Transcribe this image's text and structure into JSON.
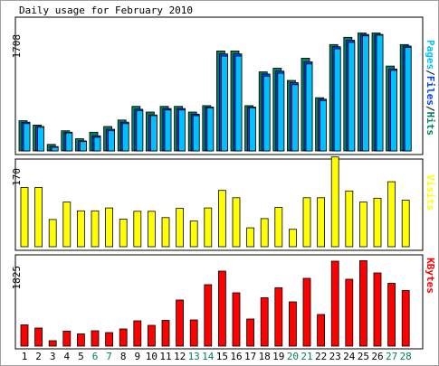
{
  "chart_data": [
    {
      "type": "bar",
      "title": "Daily usage for February 2010",
      "ytop_label": "1708",
      "ylim": [
        0,
        1760
      ],
      "legend": [
        "Pages",
        "Files",
        "Hits"
      ],
      "legend_sep": "/",
      "categories": [
        "1",
        "2",
        "3",
        "4",
        "5",
        "6",
        "7",
        "8",
        "9",
        "10",
        "11",
        "12",
        "13",
        "14",
        "15",
        "16",
        "17",
        "18",
        "19",
        "20",
        "21",
        "22",
        "23",
        "24",
        "25",
        "26",
        "27",
        "28"
      ],
      "weekend_days": [
        "6",
        "7",
        "13",
        "14",
        "20",
        "21",
        "27",
        "28"
      ],
      "series": [
        {
          "name": "Hits",
          "values": [
            420,
            360,
            90,
            280,
            170,
            260,
            340,
            430,
            620,
            540,
            620,
            620,
            540,
            630,
            1390,
            1390,
            630,
            1100,
            1150,
            980,
            1290,
            740,
            1480,
            1580,
            1640,
            1640,
            1180,
            1480
          ]
        },
        {
          "name": "Files",
          "values": [
            400,
            340,
            60,
            260,
            140,
            210,
            300,
            400,
            580,
            500,
            590,
            590,
            510,
            610,
            1350,
            1350,
            610,
            1070,
            1110,
            950,
            1240,
            720,
            1450,
            1540,
            1620,
            1620,
            1140,
            1460
          ]
        },
        {
          "name": "Pages",
          "values": [
            380,
            330,
            50,
            250,
            130,
            190,
            280,
            380,
            560,
            490,
            570,
            570,
            490,
            600,
            1320,
            1320,
            600,
            1040,
            1080,
            920,
            1210,
            700,
            1420,
            1510,
            1600,
            1610,
            1120,
            1440
          ]
        }
      ]
    },
    {
      "type": "bar",
      "ytop_label": "170",
      "ylim": [
        0,
        177
      ],
      "legend": [
        "Visits"
      ],
      "categories": [
        "1",
        "2",
        "3",
        "4",
        "5",
        "6",
        "7",
        "8",
        "9",
        "10",
        "11",
        "12",
        "13",
        "14",
        "15",
        "16",
        "17",
        "18",
        "19",
        "20",
        "21",
        "22",
        "23",
        "24",
        "25",
        "26",
        "27",
        "28"
      ],
      "series": [
        {
          "name": "Visits",
          "values": [
            122,
            122,
            56,
            92,
            74,
            74,
            80,
            57,
            73,
            73,
            60,
            79,
            53,
            80,
            116,
            101,
            39,
            58,
            81,
            36,
            101,
            101,
            185,
            115,
            92,
            100,
            134,
            96
          ]
        }
      ]
    },
    {
      "type": "bar",
      "ytop_label": "1825",
      "ylim": [
        0,
        1900
      ],
      "legend": [
        "KBytes"
      ],
      "categories": [
        "1",
        "2",
        "3",
        "4",
        "5",
        "6",
        "7",
        "8",
        "9",
        "10",
        "11",
        "12",
        "13",
        "14",
        "15",
        "16",
        "17",
        "18",
        "19",
        "20",
        "21",
        "22",
        "23",
        "24",
        "25",
        "26",
        "27",
        "28"
      ],
      "series": [
        {
          "name": "KBytes",
          "values": [
            470,
            400,
            120,
            330,
            270,
            340,
            300,
            380,
            560,
            460,
            570,
            1020,
            580,
            1360,
            1660,
            1180,
            600,
            1070,
            1290,
            980,
            1500,
            700,
            1880,
            1480,
            1890,
            1620,
            1390,
            1230
          ]
        }
      ]
    }
  ],
  "colors": {
    "hits": "#00805c",
    "files": "#0040ff",
    "pages": "#00c0ff",
    "visits": "#ffff00",
    "kbytes": "#ff0000",
    "weekday_label": "#000000",
    "weekend_label": "#00805c"
  }
}
